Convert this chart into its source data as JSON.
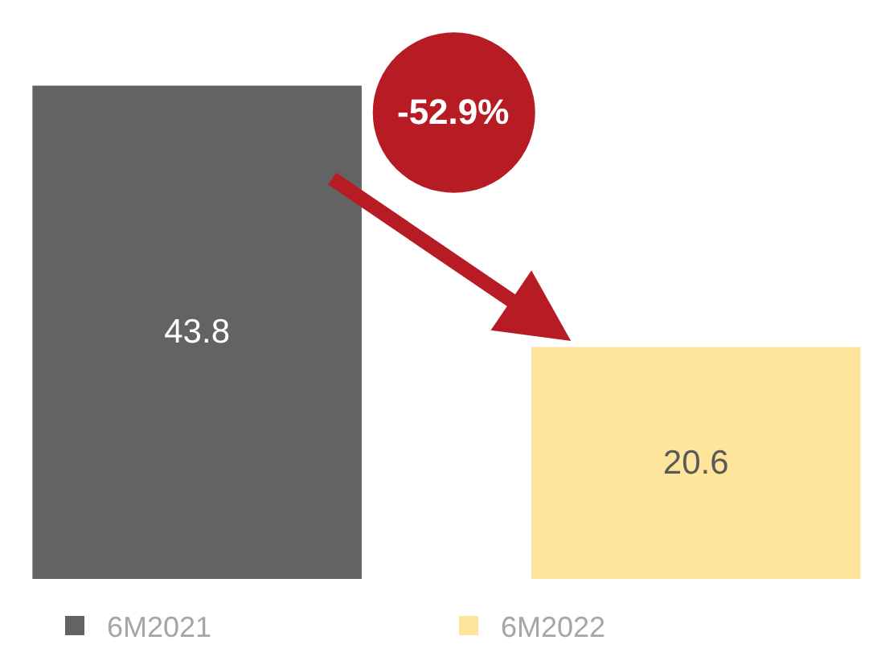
{
  "chart_data": {
    "type": "bar",
    "categories": [
      null
    ],
    "series": [
      {
        "name": "6M2021",
        "color": "#636363",
        "values": [
          43.8
        ]
      },
      {
        "name": "6M2022",
        "color": "#fde69c",
        "values": [
          20.6
        ]
      }
    ],
    "ylim": [
      0,
      51.4
    ],
    "data_labels": true,
    "legend": "bottom",
    "grid": false,
    "tick_labels": false,
    "annotations": [
      "-52.9%"
    ]
  }
}
